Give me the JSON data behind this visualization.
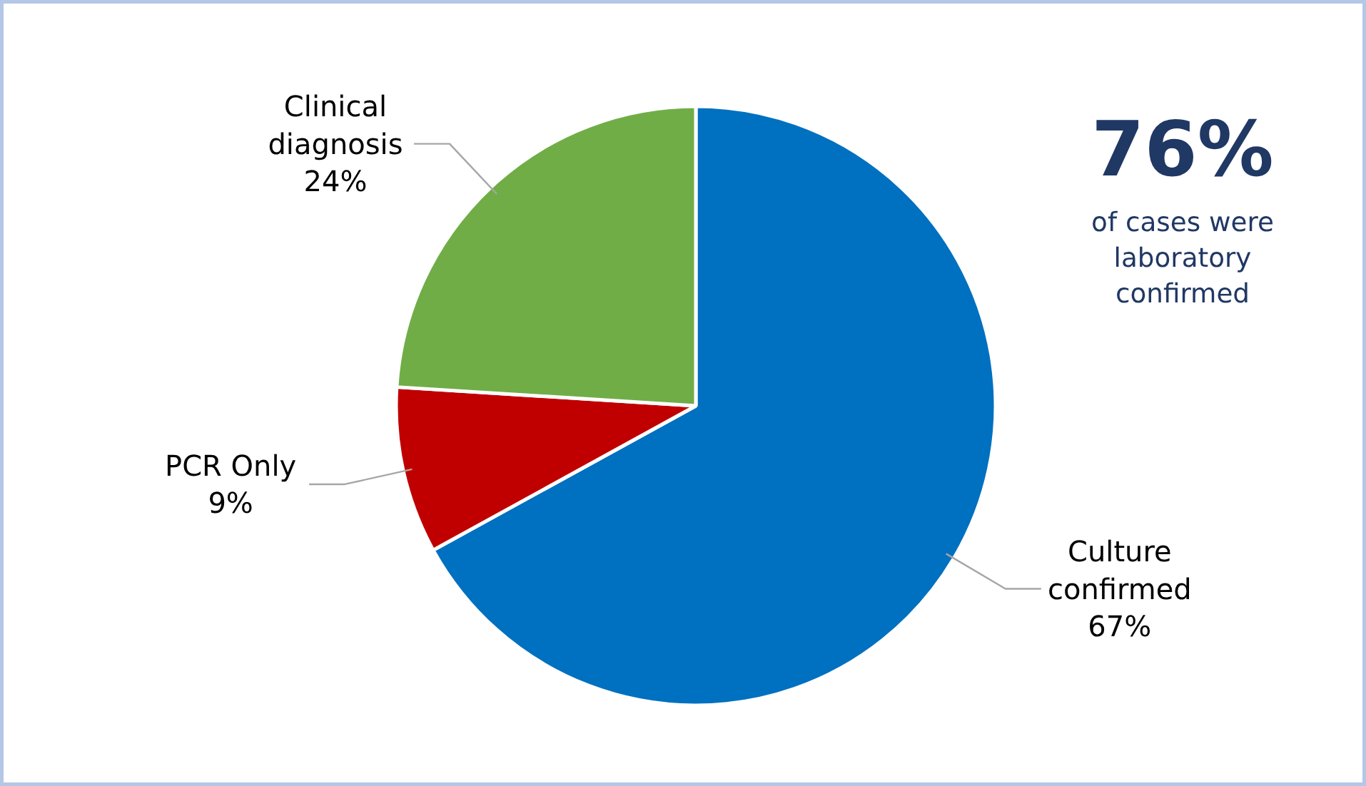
{
  "chart_data": {
    "type": "pie",
    "categories": [
      "Culture confirmed",
      "PCR Only",
      "Clinical diagnosis"
    ],
    "values": [
      67,
      9,
      24
    ],
    "colors": [
      "#0070c0",
      "#c00000",
      "#70ad47"
    ],
    "value_labels": [
      "67%",
      "9%",
      "24%"
    ],
    "annotations": [
      "76%",
      "of cases were laboratory confirmed"
    ]
  }
}
